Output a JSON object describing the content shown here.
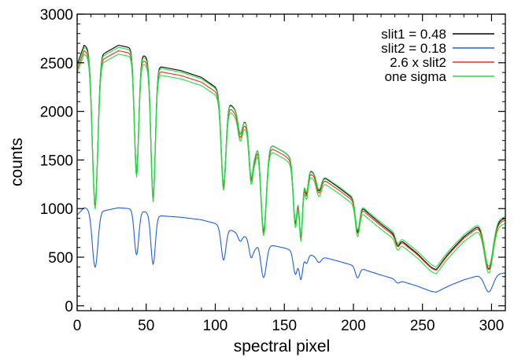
{
  "chart_data": {
    "type": "line",
    "title": "",
    "xlabel": "spectral pixel",
    "ylabel": "counts",
    "xlim": [
      0,
      310
    ],
    "ylim": [
      -50,
      3000
    ],
    "xticks": [
      0,
      50,
      100,
      150,
      200,
      250,
      300
    ],
    "yticks": [
      0,
      500,
      1000,
      1500,
      2000,
      2500,
      3000
    ],
    "xtick_labels": [
      "0",
      "50",
      "100",
      "150",
      "200",
      "250",
      "300"
    ],
    "ytick_labels": [
      "0",
      "500",
      "1000",
      "1500",
      "2000",
      "2500",
      "3000"
    ],
    "grid": false,
    "legend_position": "top-right",
    "continuum": {
      "x": [
        0,
        5,
        10,
        20,
        30,
        40,
        50,
        60,
        75,
        90,
        100,
        110,
        120,
        130,
        140,
        150,
        160,
        170,
        180,
        190,
        200,
        210,
        220,
        230,
        240,
        250,
        260,
        270,
        280,
        290,
        300,
        310
      ],
      "y": [
        2480,
        2680,
        2650,
        2600,
        2680,
        2650,
        2560,
        2460,
        2420,
        2350,
        2250,
        2090,
        1930,
        1770,
        1660,
        1580,
        1460,
        1380,
        1310,
        1210,
        1100,
        960,
        840,
        730,
        610,
        500,
        420,
        560,
        710,
        820,
        850,
        900
      ]
    },
    "absorption_lines": [
      {
        "center": 13,
        "depth": 0.6,
        "width": 2.0
      },
      {
        "center": 43,
        "depth": 0.47,
        "width": 1.6
      },
      {
        "center": 55,
        "depth": 0.55,
        "width": 1.6
      },
      {
        "center": 106,
        "depth": 0.42,
        "width": 1.7
      },
      {
        "center": 118,
        "depth": 0.1,
        "width": 1.5
      },
      {
        "center": 126,
        "depth": 0.28,
        "width": 1.5
      },
      {
        "center": 129,
        "depth": 0.1,
        "width": 1.3
      },
      {
        "center": 135,
        "depth": 0.55,
        "width": 2.0
      },
      {
        "center": 158,
        "depth": 0.42,
        "width": 1.5
      },
      {
        "center": 162,
        "depth": 0.5,
        "width": 1.3
      },
      {
        "center": 166,
        "depth": 0.18,
        "width": 1.2
      },
      {
        "center": 175,
        "depth": 0.12,
        "width": 1.7
      },
      {
        "center": 203,
        "depth": 0.28,
        "width": 1.5
      },
      {
        "center": 232,
        "depth": 0.12,
        "width": 1.5
      },
      {
        "center": 258,
        "depth": 0.12,
        "width": 5.0
      },
      {
        "center": 298,
        "depth": 0.55,
        "width": 3.0
      }
    ],
    "series": [
      {
        "name": "slit1 = 0.48",
        "color": "#000000",
        "scale": 1.0,
        "offset": 0
      },
      {
        "name": "slit2 = 0.18",
        "color": "#2060dd",
        "scale": 0.3765,
        "offset": 0
      },
      {
        "name": "2.6 x slit2",
        "color": "#ff2a1a",
        "scale": 0.979,
        "offset": 0
      },
      {
        "name": "one sigma",
        "color": "#22dd44",
        "scale": 0.979,
        "offset": 35
      },
      {
        "name": "",
        "color": "#22dd44",
        "scale": 0.979,
        "offset": -35
      }
    ]
  }
}
